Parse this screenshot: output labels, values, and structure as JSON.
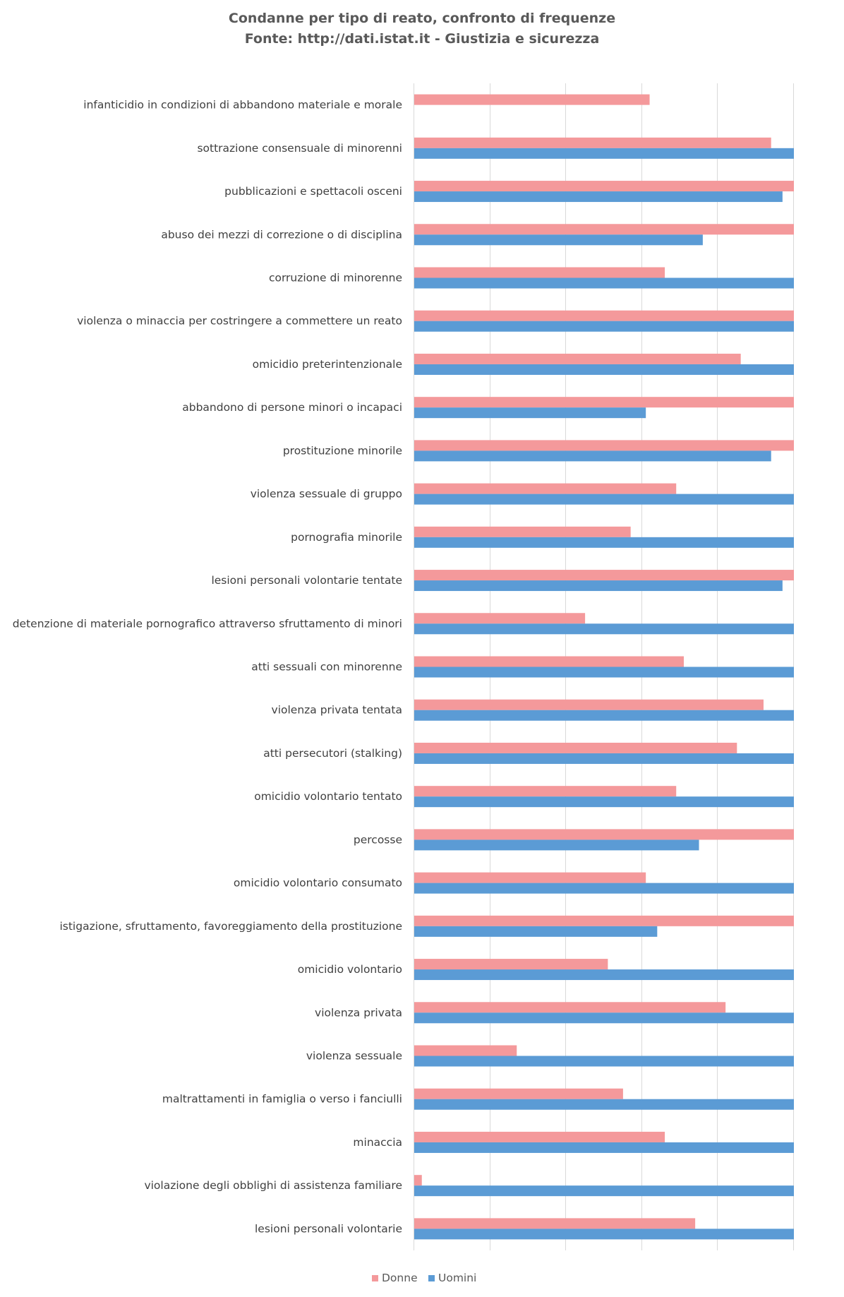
{
  "chart_data": {
    "type": "bar",
    "orientation": "horizontal",
    "title": "Condanne per tipo di reato, confronto di frequenze",
    "subtitle": "Fonte: http://dati.istat.it - Giustizia e sicurezza",
    "xlim": [
      0,
      1
    ],
    "grid": true,
    "legend_position": "bottom",
    "categories": [
      "infanticidio in condizioni di abbandono materiale e morale",
      "sottrazione consensuale di minorenni",
      "pubblicazioni e spettacoli osceni",
      "abuso dei mezzi di correzione o di disciplina",
      "corruzione di minorenne",
      "violenza o minaccia per costringere a commettere un reato",
      "omicidio preterintenzionale",
      "abbandono di persone minori o incapaci",
      "prostituzione minorile",
      "violenza sessuale di gruppo",
      "pornografia minorile",
      "lesioni personali volontarie tentate",
      "detenzione di materiale pornografico attraverso sfruttamento di minori",
      "atti sessuali con minorenne",
      "violenza privata tentata",
      "atti persecutori (stalking)",
      "omicidio volontario tentato",
      "percosse",
      "omicidio volontario consumato",
      "istigazione, sfruttamento, favoreggiamento della prostituzione",
      "omicidio volontario",
      "violenza privata",
      "violenza sessuale",
      "maltrattamenti in famiglia o verso i fanciulli",
      "minaccia",
      "violazione degli obblighi di assistenza familiare",
      "lesioni personali volontarie"
    ],
    "series": [
      {
        "name": "Donne",
        "color": "#f4999b",
        "values": [
          0.62,
          0.94,
          1.0,
          1.0,
          0.66,
          1.0,
          0.86,
          1.0,
          1.0,
          0.69,
          0.57,
          1.0,
          0.45,
          0.71,
          0.92,
          0.85,
          0.69,
          1.0,
          0.61,
          1.0,
          0.51,
          0.82,
          0.27,
          0.55,
          0.66,
          0.02,
          0.74
        ]
      },
      {
        "name": "Uomini",
        "color": "#5b9bd5",
        "values": [
          0.0,
          1.0,
          0.97,
          0.76,
          1.0,
          1.0,
          1.0,
          0.61,
          0.94,
          1.0,
          1.0,
          0.97,
          1.0,
          1.0,
          1.0,
          1.0,
          1.0,
          0.75,
          1.0,
          0.64,
          1.0,
          1.0,
          1.0,
          1.0,
          1.0,
          1.0,
          1.0
        ]
      }
    ]
  }
}
